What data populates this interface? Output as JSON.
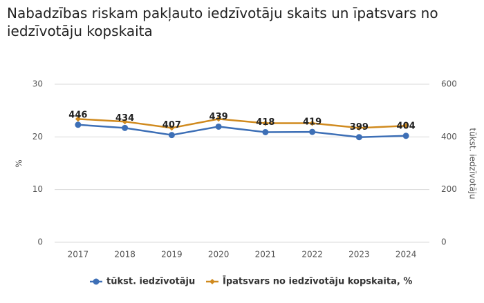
{
  "chart_data": {
    "type": "line",
    "title": "Nabadzības riskam pakļauto iedzīvotāju skaits un īpatsvars no iedzīvotāju kopskaita",
    "categories": [
      "2017",
      "2018",
      "2019",
      "2020",
      "2021",
      "2022",
      "2023",
      "2024"
    ],
    "series": [
      {
        "name": "tūkst. iedzīvotāju",
        "color": "#3d6fb6",
        "axis": "y2",
        "values": [
          446,
          434,
          407,
          439,
          418,
          419,
          399,
          404
        ]
      },
      {
        "name": "Īpatsvars no iedzīvotāju kopskaita, %",
        "color": "#d08a1e",
        "values": [
          23.4,
          22.9,
          21.7,
          23.4,
          22.6,
          22.6,
          21.7,
          22.1
        ]
      }
    ],
    "ylabel": "%",
    "y2label": "tūkst. iedzīvotāju",
    "ylim": [
      0,
      30
    ],
    "yticks": [
      0,
      10,
      20,
      30
    ],
    "y2lim": [
      0,
      600
    ],
    "y2ticks": [
      0,
      200,
      400,
      600
    ],
    "grid": true
  }
}
